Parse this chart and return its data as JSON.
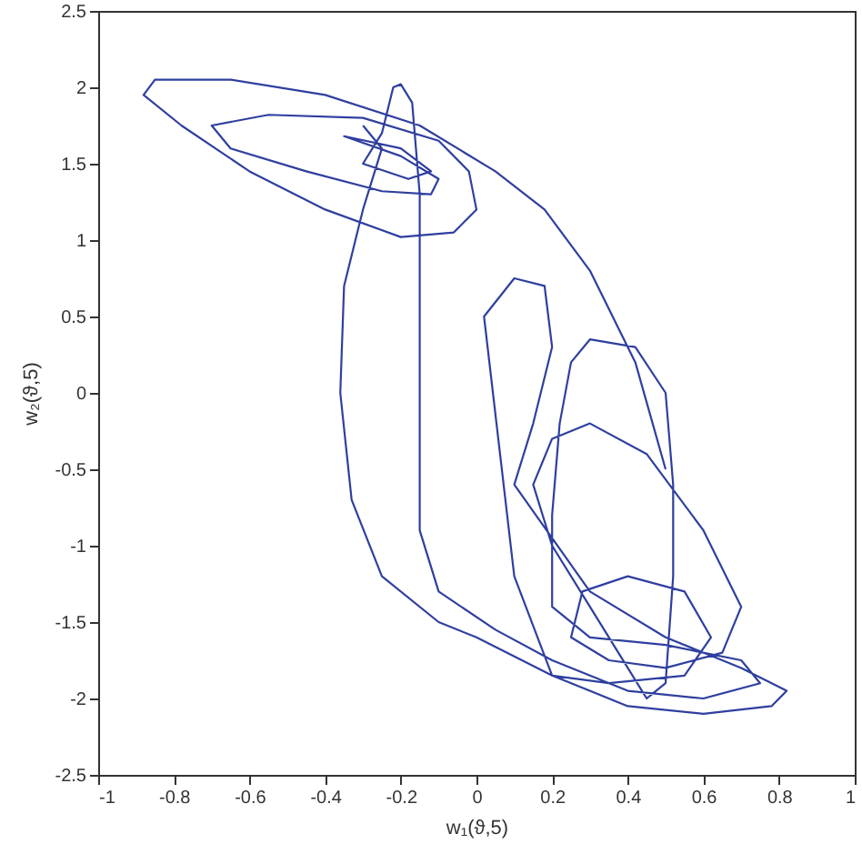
{
  "chart_data": {
    "type": "line",
    "xlabel": "w₁(ϑ,5)",
    "ylabel": "w₂(ϑ,5)",
    "xlim": [
      -1,
      1
    ],
    "ylim": [
      -2.5,
      2.5
    ],
    "xticks": [
      -1,
      -0.8,
      -0.6,
      -0.4,
      -0.2,
      0,
      0.2,
      0.4,
      0.6,
      0.8,
      1
    ],
    "yticks": [
      -2.5,
      -2,
      -1.5,
      -1,
      -0.5,
      0,
      0.5,
      1,
      1.5,
      2,
      2.5
    ],
    "x": [
      0.5,
      0.42,
      0.3,
      0.18,
      0.05,
      -0.15,
      -0.4,
      -0.65,
      -0.85,
      -0.88,
      -0.78,
      -0.6,
      -0.4,
      -0.2,
      -0.06,
      0.0,
      -0.02,
      -0.1,
      -0.3,
      -0.55,
      -0.7,
      -0.65,
      -0.45,
      -0.25,
      -0.12,
      -0.1,
      -0.2,
      -0.35,
      -0.2,
      -0.12,
      -0.18,
      -0.3,
      -0.25,
      -0.22,
      -0.2,
      -0.17,
      -0.15,
      -0.15,
      -0.15,
      -0.15,
      -0.1,
      0.05,
      0.2,
      0.4,
      0.6,
      0.75,
      0.7,
      0.5,
      0.3,
      0.2,
      0.2,
      0.22,
      0.25,
      0.3,
      0.42,
      0.5,
      0.52,
      0.52,
      0.5,
      0.45,
      0.4,
      0.3,
      0.2,
      0.15,
      0.2,
      0.3,
      0.45,
      0.6,
      0.7,
      0.65,
      0.5,
      0.35,
      0.25,
      0.28,
      0.4,
      0.55,
      0.62,
      0.55,
      0.35,
      0.2,
      0.1,
      0.02,
      0.1,
      0.18,
      0.2,
      0.15,
      0.1,
      0.3,
      0.5,
      0.7,
      0.82,
      0.78,
      0.6,
      0.4,
      0.2,
      0.0,
      -0.1,
      -0.25,
      -0.33,
      -0.36,
      -0.35,
      -0.3,
      -0.25,
      -0.3
    ],
    "series": [
      {
        "color": "#2f3f9f",
        "values": [
          -0.5,
          0.2,
          0.8,
          1.2,
          1.45,
          1.75,
          1.95,
          2.05,
          2.05,
          1.95,
          1.75,
          1.45,
          1.2,
          1.02,
          1.05,
          1.2,
          1.45,
          1.65,
          1.8,
          1.82,
          1.75,
          1.6,
          1.45,
          1.32,
          1.3,
          1.4,
          1.55,
          1.68,
          1.6,
          1.45,
          1.4,
          1.5,
          1.7,
          2.0,
          2.02,
          1.9,
          1.3,
          0.5,
          -0.3,
          -0.9,
          -1.3,
          -1.55,
          -1.75,
          -1.95,
          -2.0,
          -1.9,
          -1.75,
          -1.65,
          -1.6,
          -1.4,
          -0.8,
          -0.2,
          0.2,
          0.35,
          0.3,
          0.0,
          -0.6,
          -1.2,
          -1.9,
          -2.0,
          -1.8,
          -1.4,
          -1.0,
          -0.6,
          -0.3,
          -0.2,
          -0.4,
          -0.9,
          -1.4,
          -1.7,
          -1.8,
          -1.75,
          -1.6,
          -1.3,
          -1.2,
          -1.3,
          -1.6,
          -1.85,
          -1.9,
          -1.85,
          -1.2,
          0.5,
          0.75,
          0.7,
          0.3,
          -0.2,
          -0.6,
          -1.3,
          -1.6,
          -1.8,
          -1.95,
          -2.05,
          -2.1,
          -2.05,
          -1.85,
          -1.6,
          -1.5,
          -1.2,
          -0.7,
          0.0,
          0.7,
          1.2,
          1.6,
          1.75
        ]
      }
    ]
  }
}
